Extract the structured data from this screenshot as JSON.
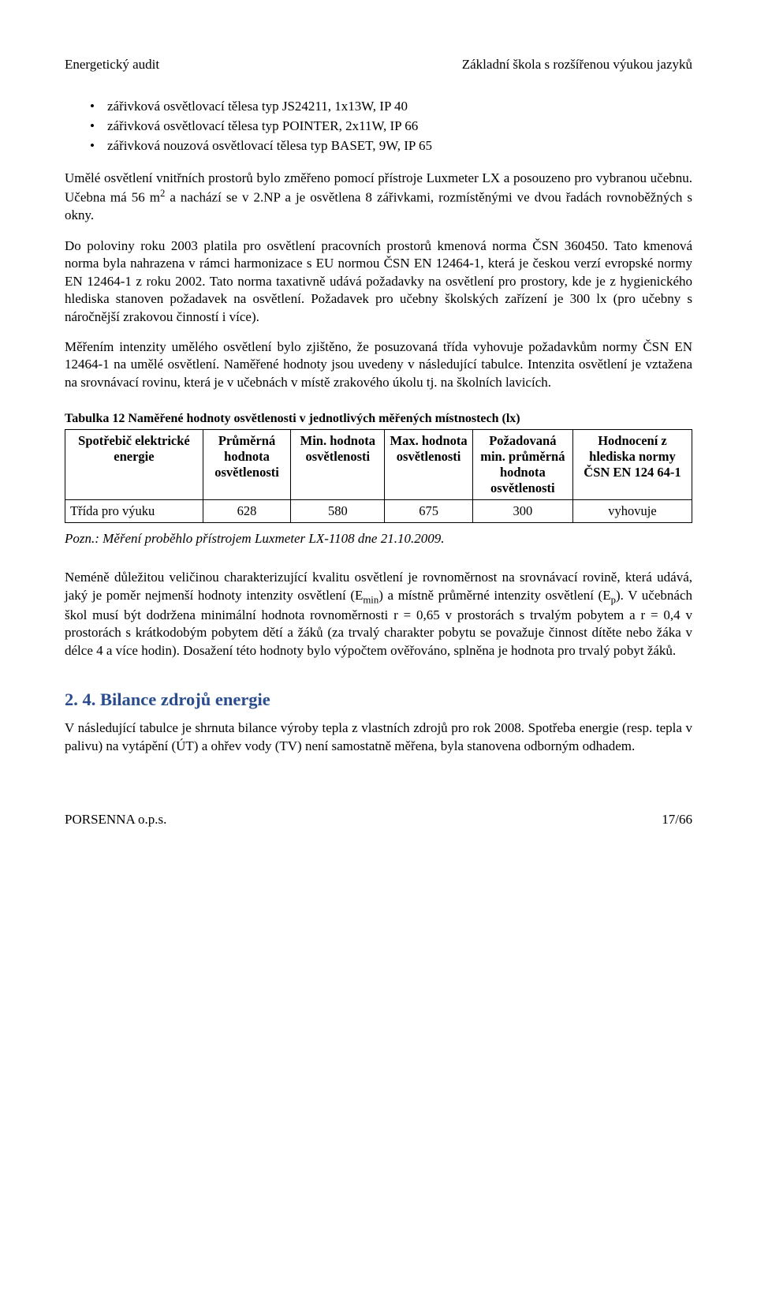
{
  "header": {
    "left": "Energetický audit",
    "right": "Základní škola s rozšířenou výukou jazyků"
  },
  "bullets": [
    "zářivková osvětlovací tělesa typ JS24211, 1x13W, IP 40",
    "zářivková osvětlovací tělesa typ POINTER, 2x11W, IP 66",
    "zářivková nouzová osvětlovací tělesa typ BASET, 9W, IP 65"
  ],
  "p1_a": "Umělé osvětlení vnitřních prostorů bylo změřeno pomocí přístroje Luxmeter LX a posouzeno pro vybranou učebnu. Učebna má 56 m",
  "p1_sup": "2",
  "p1_b": " a nachází se v 2.NP a je osvětlena 8 zářivkami, rozmístěnými ve dvou řadách rovnoběžných s okny.",
  "p2": "Do poloviny roku 2003 platila pro osvětlení pracovních prostorů kmenová norma ČSN 360450. Tato kmenová norma byla nahrazena v rámci harmonizace s EU normou ČSN EN 12464-1, která je českou verzí evropské normy EN 12464-1 z roku 2002. Tato norma taxativně udává požadavky na osvětlení pro prostory, kde je z hygienického hlediska stanoven požadavek na osvětlení. Požadavek pro učebny školských zařízení je 300 lx (pro učebny s náročnější zrakovou činností i více).",
  "p3": "Měřením intenzity umělého osvětlení bylo zjištěno, že posuzovaná třída vyhovuje požadavkům normy ČSN EN 12464-1 na umělé osvětlení. Naměřené hodnoty jsou uvedeny v následující tabulce. Intenzita osvětlení je vztažena na srovnávací rovinu, která je v učebnách v místě zrakového úkolu tj. na školních lavicích.",
  "table": {
    "caption": "Tabulka 12 Naměřené hodnoty osvětlenosti v jednotlivých měřených místnostech (lx)",
    "headers": [
      "Spotřebič elektrické energie",
      "Průměrná hodnota osvětlenosti",
      "Min. hodnota osvětlenosti",
      "Max. hodnota osvětlenosti",
      "Požadovaná min. průměrná hodnota osvětlenosti",
      "Hodnocení z hlediska normy ČSN EN 124 64-1"
    ],
    "col_widths": [
      "22%",
      "14%",
      "15%",
      "14%",
      "16%",
      "19%"
    ],
    "row": {
      "label": "Třída pro výuku",
      "avg": "628",
      "min": "580",
      "max": "675",
      "req": "300",
      "eval": "vyhovuje"
    }
  },
  "note": "Pozn.: Měření proběhlo přístrojem Luxmeter LX-1108 dne 21.10.2009.",
  "p4_a": "Neméně důležitou veličinou charakterizující kvalitu osvětlení je rovnoměrnost na srovnávací rovině, která udává, jaký je poměr nejmenší hodnoty intenzity osvětlení (E",
  "p4_sub1": "min",
  "p4_b": ") a místně průměrné intenzity osvětlení (E",
  "p4_sub2": "p",
  "p4_c": "). V učebnách škol musí být dodržena minimální hodnota rovnoměrnosti r = 0,65 v prostorách s trvalým pobytem a r = 0,4 v prostorách s krátkodobým pobytem dětí a žáků (za trvalý charakter pobytu se považuje činnost dítěte nebo žáka v délce 4 a více hodin). Dosažení této hodnoty bylo výpočtem ověřováno, splněna je hodnota pro trvalý pobyt žáků.",
  "section": {
    "num": "2. 4.",
    "title": "Bilance zdrojů energie"
  },
  "p5": "V následující tabulce je shrnuta bilance výroby tepla z vlastních zdrojů pro rok 2008. Spotřeba energie (resp. tepla v palivu) na vytápění (ÚT) a ohřev vody (TV) není samostatně měřena, byla stanovena odborným odhadem.",
  "footer": {
    "left": "PORSENNA o.p.s.",
    "right": "17/66"
  },
  "colors": {
    "heading": "#2a4c8f",
    "text": "#000000",
    "bg": "#ffffff",
    "border": "#000000"
  },
  "fonts": {
    "body_family": "Times New Roman",
    "body_size_pt": 12,
    "heading_size_pt": 16
  }
}
